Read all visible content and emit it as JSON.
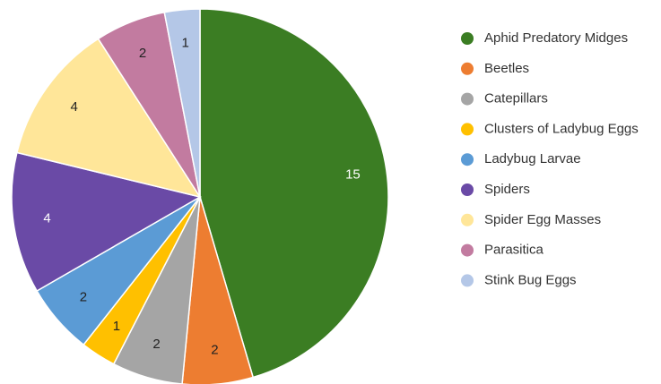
{
  "chart_data": {
    "type": "pie",
    "categories": [
      "Aphid Predatory Midges",
      "Beetles",
      "Catepillars",
      "Clusters of Ladybug Eggs",
      "Ladybug Larvae",
      "Spiders",
      "Spider Egg Masses",
      "Parasitica",
      "Stink Bug Eggs"
    ],
    "values": [
      15,
      2,
      2,
      1,
      2,
      4,
      4,
      2,
      1
    ],
    "colors": [
      "#3b7d23",
      "#ed7d31",
      "#a5a5a5",
      "#ffc000",
      "#5b9bd5",
      "#6a4aa6",
      "#ffe699",
      "#c27ba0",
      "#b4c7e7"
    ],
    "legend": "right"
  }
}
